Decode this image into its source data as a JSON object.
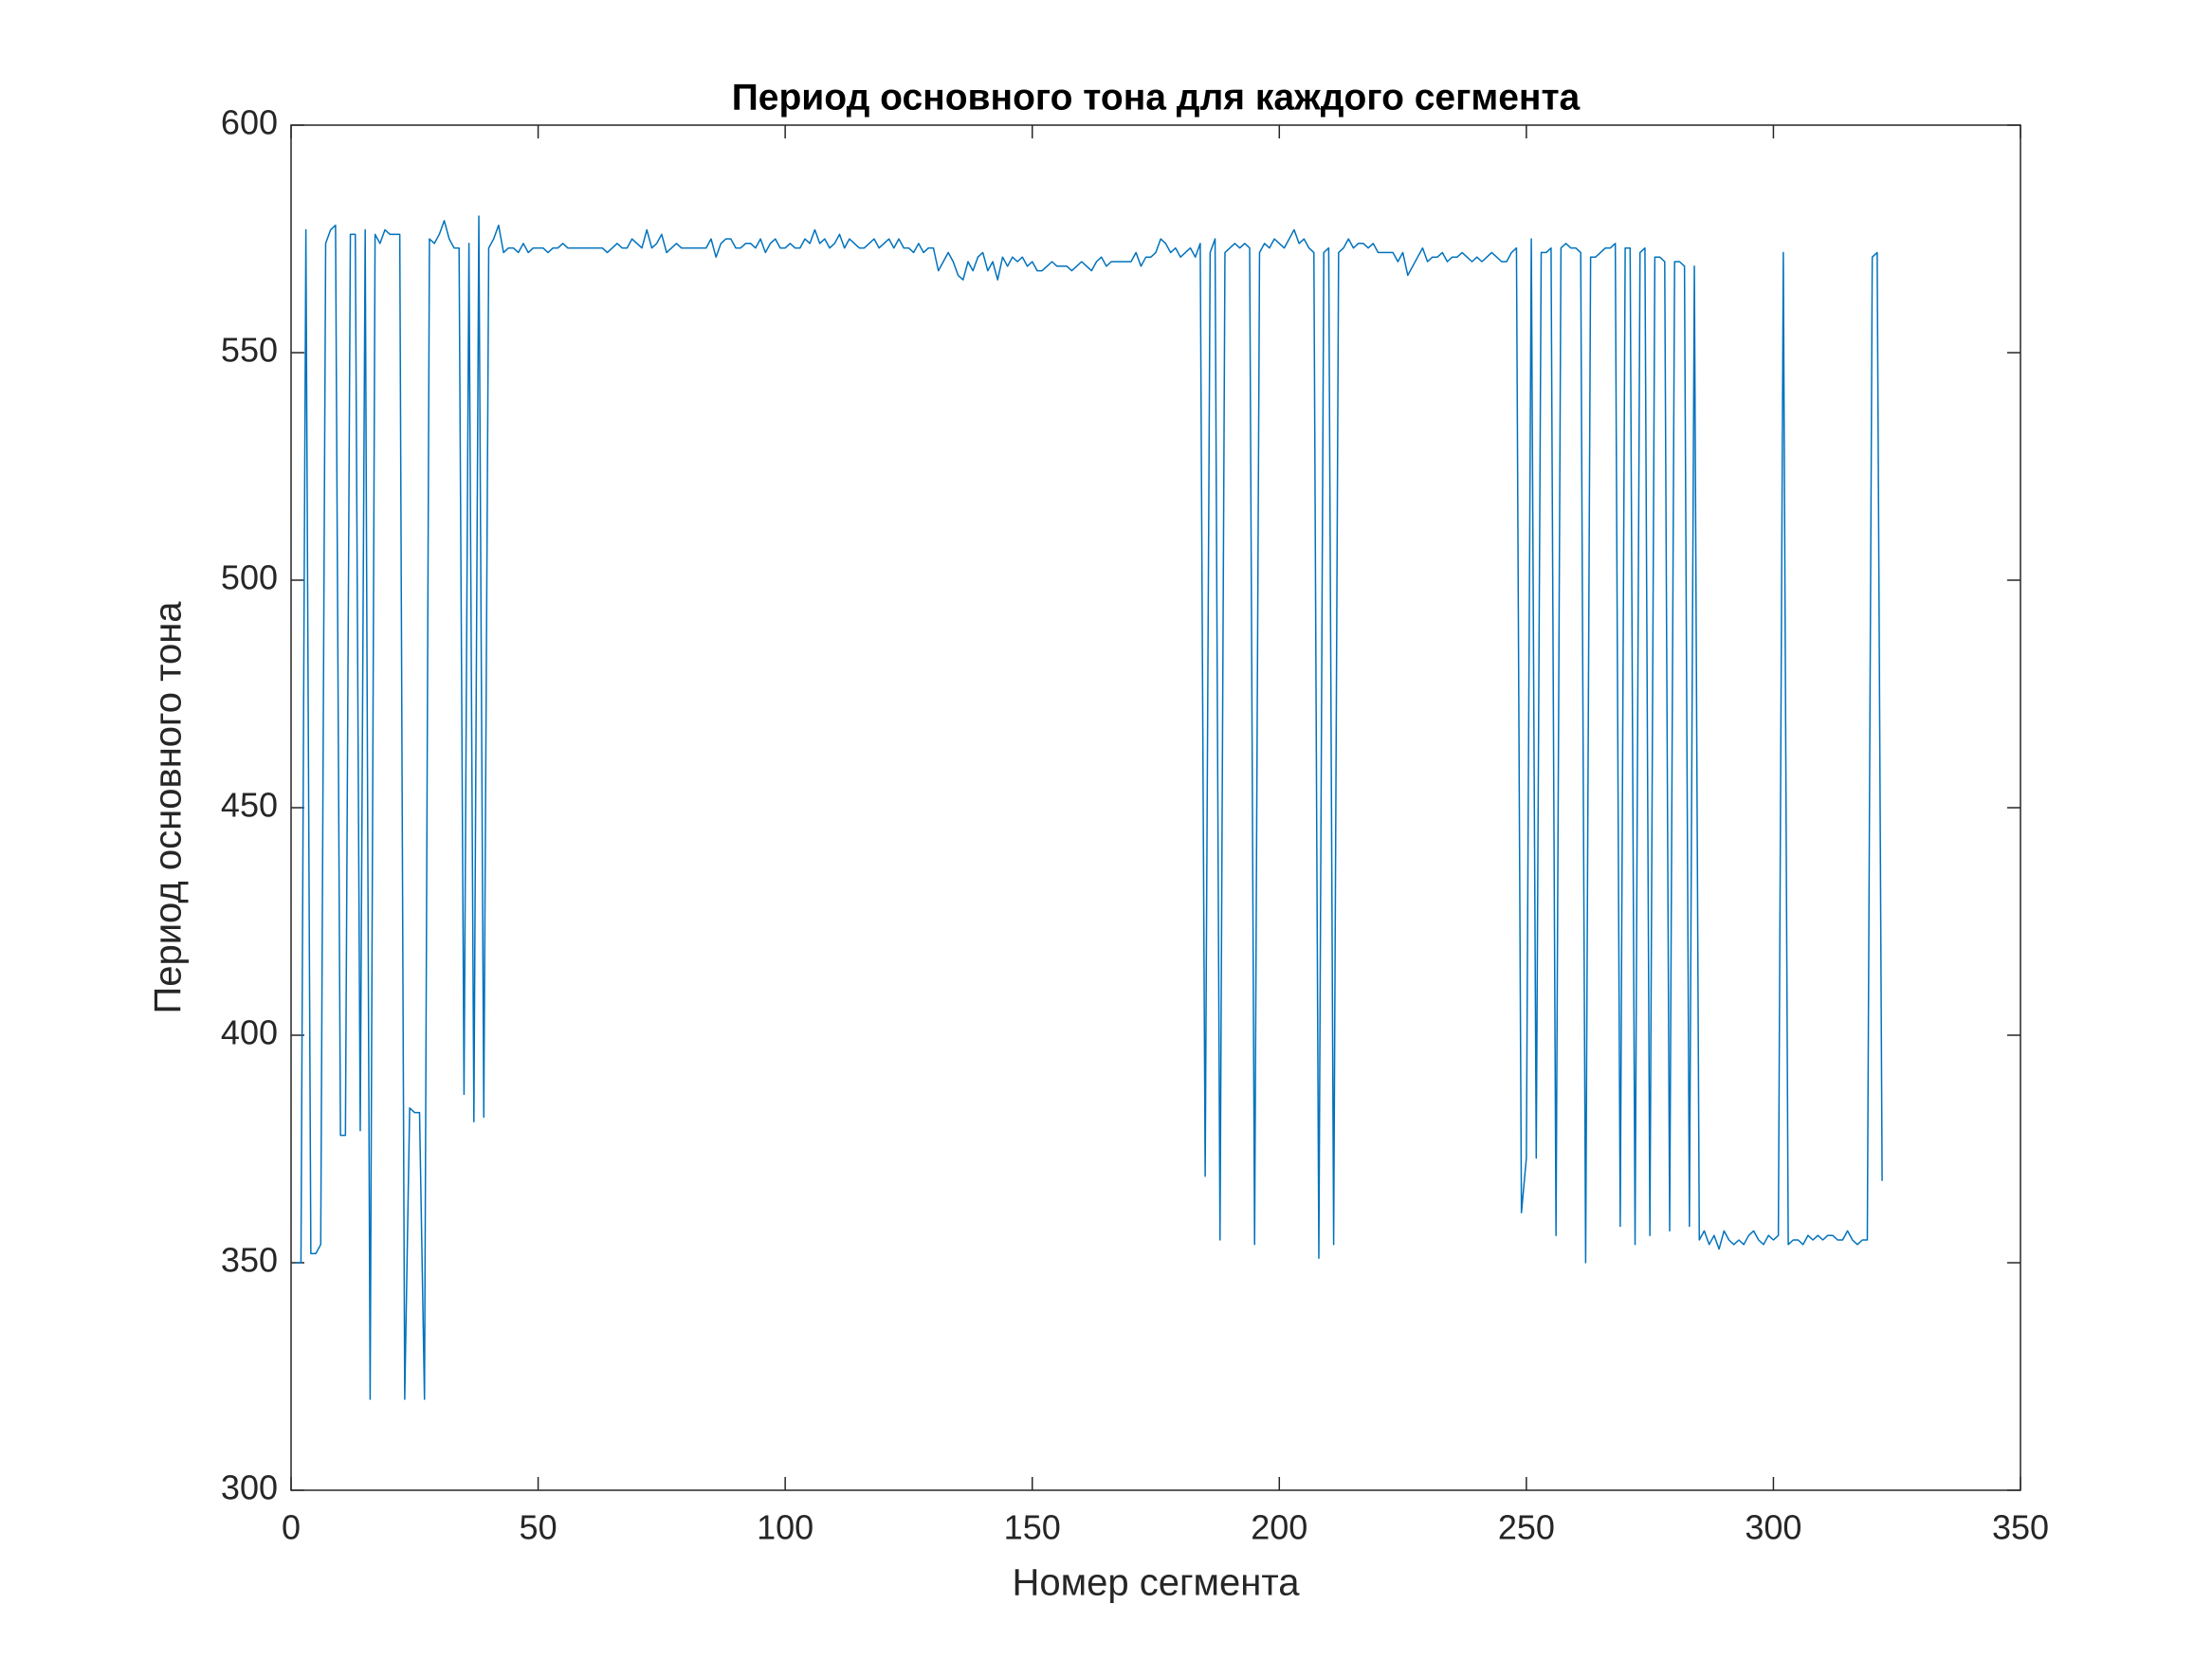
{
  "chart_data": {
    "type": "line",
    "title": "Период основного тона для каждого сегмента",
    "x_label": "Номер сегмента",
    "y_label": "Период основного тона",
    "color": "#0072bd",
    "xlim": [
      0,
      350
    ],
    "xticks": [
      0,
      50,
      100,
      150,
      200,
      250,
      300,
      350
    ],
    "ylim": [
      300,
      600
    ],
    "yticks": [
      300,
      350,
      400,
      450,
      500,
      550,
      600
    ],
    "x": [
      1,
      2,
      3,
      4,
      5,
      6,
      7,
      8,
      9,
      10,
      11,
      12,
      13,
      14,
      15,
      16,
      17,
      18,
      19,
      20,
      21,
      22,
      23,
      24,
      25,
      26,
      27,
      28,
      29,
      30,
      31,
      32,
      33,
      34,
      35,
      36,
      37,
      38,
      39,
      40,
      41,
      42,
      43,
      44,
      45,
      46,
      47,
      48,
      49,
      50,
      51,
      52,
      53,
      54,
      55,
      56,
      57,
      58,
      59,
      60,
      61,
      62,
      63,
      64,
      65,
      66,
      67,
      68,
      69,
      70,
      71,
      72,
      73,
      74,
      75,
      76,
      77,
      78,
      79,
      80,
      81,
      82,
      83,
      84,
      85,
      86,
      87,
      88,
      89,
      90,
      91,
      92,
      93,
      94,
      95,
      96,
      97,
      98,
      99,
      100,
      101,
      102,
      103,
      104,
      105,
      106,
      107,
      108,
      109,
      110,
      111,
      112,
      113,
      114,
      115,
      116,
      117,
      118,
      119,
      120,
      121,
      122,
      123,
      124,
      125,
      126,
      127,
      128,
      129,
      130,
      131,
      132,
      133,
      134,
      135,
      136,
      137,
      138,
      139,
      140,
      141,
      142,
      143,
      144,
      145,
      146,
      147,
      148,
      149,
      150,
      151,
      152,
      153,
      154,
      155,
      156,
      157,
      158,
      159,
      160,
      161,
      162,
      163,
      164,
      165,
      166,
      167,
      168,
      169,
      170,
      171,
      172,
      173,
      174,
      175,
      176,
      177,
      178,
      179,
      180,
      181,
      182,
      183,
      184,
      185,
      186,
      187,
      188,
      189,
      190,
      191,
      192,
      193,
      194,
      195,
      196,
      197,
      198,
      199,
      200,
      201,
      202,
      203,
      204,
      205,
      206,
      207,
      208,
      209,
      210,
      211,
      212,
      213,
      214,
      215,
      216,
      217,
      218,
      219,
      220,
      221,
      222,
      223,
      224,
      225,
      226,
      227,
      228,
      229,
      230,
      231,
      232,
      233,
      234,
      235,
      236,
      237,
      238,
      239,
      240,
      241,
      242,
      243,
      244,
      245,
      246,
      247,
      248,
      249,
      250,
      251,
      252,
      253,
      254,
      255,
      256,
      257,
      258,
      259,
      260,
      261,
      262,
      263,
      264,
      265,
      266,
      267,
      268,
      269,
      270,
      271,
      272,
      273,
      274,
      275,
      276,
      277,
      278,
      279,
      280,
      281,
      282,
      283,
      284,
      285,
      286,
      287,
      288,
      289,
      290,
      291,
      292,
      293,
      294,
      295,
      296,
      297,
      298,
      299,
      300,
      301,
      302,
      303,
      304,
      305,
      306,
      307,
      308,
      309,
      310,
      311,
      312,
      313,
      314,
      315,
      316,
      317,
      318,
      319,
      320,
      321,
      322
    ],
    "values": [
      350,
      350,
      577,
      352,
      352,
      354,
      574,
      577,
      578,
      378,
      378,
      576,
      576,
      379,
      577,
      320,
      576,
      574,
      577,
      576,
      576,
      576,
      320,
      384,
      383,
      383,
      320,
      575,
      574,
      576,
      579,
      575,
      573,
      573,
      387,
      574,
      381,
      580,
      382,
      573,
      575,
      578,
      572,
      573,
      573,
      572,
      574,
      572,
      573,
      573,
      573,
      572,
      573,
      573,
      574,
      573,
      573,
      573,
      573,
      573,
      573,
      573,
      573,
      572,
      573,
      574,
      573,
      573,
      575,
      574,
      573,
      577,
      573,
      574,
      576,
      572,
      573,
      574,
      573,
      573,
      573,
      573,
      573,
      573,
      575,
      571,
      574,
      575,
      575,
      573,
      573,
      574,
      574,
      573,
      575,
      572,
      574,
      575,
      573,
      573,
      574,
      573,
      573,
      575,
      574,
      577,
      574,
      575,
      573,
      574,
      576,
      573,
      575,
      574,
      573,
      573,
      574,
      575,
      573,
      574,
      575,
      573,
      575,
      573,
      573,
      572,
      574,
      572,
      573,
      573,
      568,
      570,
      572,
      570,
      567,
      566,
      570,
      568,
      571,
      572,
      568,
      570,
      566,
      571,
      569,
      571,
      570,
      571,
      569,
      570,
      568,
      568,
      569,
      570,
      569,
      569,
      569,
      568,
      569,
      570,
      569,
      568,
      570,
      571,
      569,
      570,
      570,
      570,
      570,
      570,
      572,
      569,
      571,
      571,
      572,
      575,
      574,
      572,
      573,
      571,
      572,
      573,
      571,
      574,
      369,
      572,
      575,
      355,
      572,
      573,
      574,
      573,
      574,
      573,
      354,
      572,
      574,
      573,
      575,
      574,
      573,
      575,
      577,
      574,
      575,
      573,
      572,
      351,
      572,
      573,
      354,
      572,
      573,
      575,
      573,
      574,
      574,
      573,
      574,
      572,
      572,
      572,
      572,
      570,
      572,
      567,
      569,
      571,
      573,
      570,
      571,
      571,
      572,
      570,
      571,
      571,
      572,
      571,
      570,
      571,
      570,
      571,
      572,
      571,
      570,
      570,
      572,
      573,
      361,
      373,
      575,
      373,
      572,
      572,
      573,
      356,
      573,
      574,
      573,
      573,
      572,
      350,
      571,
      571,
      572,
      573,
      573,
      574,
      358,
      573,
      573,
      354,
      572,
      573,
      356,
      571,
      571,
      570,
      357,
      570,
      570,
      569,
      358,
      569,
      355,
      357,
      354,
      356,
      353,
      357,
      355,
      354,
      355,
      354,
      356,
      357,
      355,
      354,
      356,
      355,
      356,
      572,
      354,
      355,
      355,
      354,
      356,
      355,
      356,
      355,
      356,
      356,
      355,
      355,
      357,
      355,
      354,
      355,
      355,
      571,
      572,
      368
    ]
  }
}
